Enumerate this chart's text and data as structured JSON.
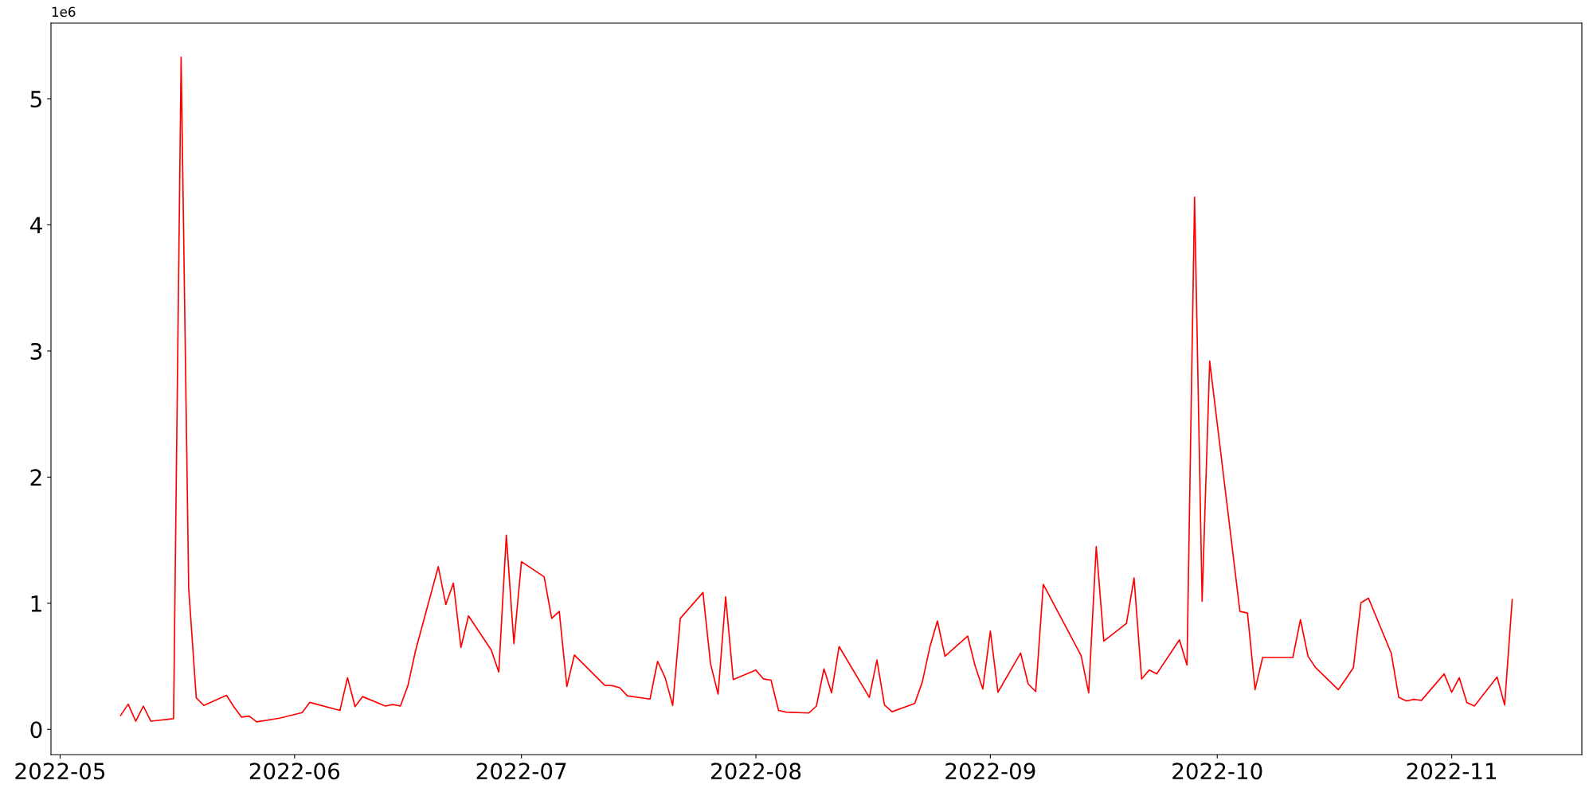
{
  "chart_data": {
    "type": "line",
    "x": [
      "2022-05-09",
      "2022-05-10",
      "2022-05-11",
      "2022-05-12",
      "2022-05-13",
      "2022-05-16",
      "2022-05-17",
      "2022-05-18",
      "2022-05-19",
      "2022-05-20",
      "2022-05-23",
      "2022-05-24",
      "2022-05-25",
      "2022-05-26",
      "2022-05-27",
      "2022-05-30",
      "2022-06-02",
      "2022-06-03",
      "2022-06-07",
      "2022-06-08",
      "2022-06-09",
      "2022-06-10",
      "2022-06-13",
      "2022-06-14",
      "2022-06-15",
      "2022-06-16",
      "2022-06-17",
      "2022-06-20",
      "2022-06-21",
      "2022-06-22",
      "2022-06-23",
      "2022-06-24",
      "2022-06-27",
      "2022-06-28",
      "2022-06-29",
      "2022-06-30",
      "2022-07-01",
      "2022-07-04",
      "2022-07-05",
      "2022-07-06",
      "2022-07-07",
      "2022-07-08",
      "2022-07-11",
      "2022-07-12",
      "2022-07-13",
      "2022-07-14",
      "2022-07-15",
      "2022-07-18",
      "2022-07-19",
      "2022-07-20",
      "2022-07-21",
      "2022-07-22",
      "2022-07-25",
      "2022-07-26",
      "2022-07-27",
      "2022-07-28",
      "2022-07-29",
      "2022-08-01",
      "2022-08-02",
      "2022-08-03",
      "2022-08-04",
      "2022-08-05",
      "2022-08-08",
      "2022-08-09",
      "2022-08-10",
      "2022-08-11",
      "2022-08-12",
      "2022-08-16",
      "2022-08-17",
      "2022-08-18",
      "2022-08-19",
      "2022-08-22",
      "2022-08-23",
      "2022-08-24",
      "2022-08-25",
      "2022-08-26",
      "2022-08-29",
      "2022-08-30",
      "2022-08-31",
      "2022-09-01",
      "2022-09-02",
      "2022-09-05",
      "2022-09-06",
      "2022-09-07",
      "2022-09-08",
      "2022-09-13",
      "2022-09-14",
      "2022-09-15",
      "2022-09-16",
      "2022-09-19",
      "2022-09-20",
      "2022-09-21",
      "2022-09-22",
      "2022-09-23",
      "2022-09-26",
      "2022-09-27",
      "2022-09-28",
      "2022-09-29",
      "2022-09-30",
      "2022-10-04",
      "2022-10-05",
      "2022-10-06",
      "2022-10-07",
      "2022-10-11",
      "2022-10-12",
      "2022-10-13",
      "2022-10-14",
      "2022-10-17",
      "2022-10-18",
      "2022-10-19",
      "2022-10-20",
      "2022-10-21",
      "2022-10-24",
      "2022-10-25",
      "2022-10-26",
      "2022-10-27",
      "2022-10-28",
      "2022-10-31",
      "2022-11-01",
      "2022-11-02",
      "2022-11-03",
      "2022-11-04",
      "2022-11-07",
      "2022-11-08",
      "2022-11-09"
    ],
    "series": [
      {
        "color": "#ff0000",
        "values": [
          0.11,
          0.2,
          0.065,
          0.185,
          0.065,
          0.085,
          5.33,
          1.12,
          0.25,
          0.19,
          0.27,
          0.177,
          0.097,
          0.105,
          0.06,
          0.089,
          0.133,
          0.214,
          0.15,
          0.41,
          0.18,
          0.26,
          0.185,
          0.197,
          0.185,
          0.35,
          0.625,
          1.29,
          0.99,
          1.16,
          0.65,
          0.9,
          0.63,
          0.455,
          1.54,
          0.68,
          1.33,
          1.21,
          0.88,
          0.935,
          0.34,
          0.59,
          0.41,
          0.35,
          0.347,
          0.33,
          0.266,
          0.24,
          0.54,
          0.41,
          0.19,
          0.88,
          1.085,
          0.52,
          0.28,
          1.05,
          0.395,
          0.47,
          0.4,
          0.39,
          0.15,
          0.137,
          0.13,
          0.185,
          0.48,
          0.29,
          0.657,
          0.254,
          0.55,
          0.194,
          0.14,
          0.205,
          0.375,
          0.653,
          0.86,
          0.58,
          0.74,
          0.5,
          0.32,
          0.78,
          0.294,
          0.605,
          0.36,
          0.3,
          1.15,
          0.585,
          0.29,
          1.45,
          0.7,
          0.84,
          1.2,
          0.4,
          0.47,
          0.44,
          0.71,
          0.51,
          4.22,
          1.015,
          2.92,
          0.935,
          0.923,
          0.315,
          0.57,
          0.57,
          0.87,
          0.58,
          0.49,
          0.315,
          0.4,
          0.49,
          1.004,
          1.04,
          0.605,
          0.254,
          0.226,
          0.238,
          0.23,
          0.44,
          0.294,
          0.41,
          0.214,
          0.185,
          0.415,
          0.194,
          1.03
        ]
      }
    ],
    "xlim": [
      "2022-04-29T19:00",
      "2022-11-18T05:00"
    ],
    "xticks": [
      {
        "value": "2022-05-01",
        "label": "2022-05"
      },
      {
        "value": "2022-06-01",
        "label": "2022-06"
      },
      {
        "value": "2022-07-01",
        "label": "2022-07"
      },
      {
        "value": "2022-08-01",
        "label": "2022-08"
      },
      {
        "value": "2022-09-01",
        "label": "2022-09"
      },
      {
        "value": "2022-10-01",
        "label": "2022-10"
      },
      {
        "value": "2022-11-01",
        "label": "2022-11"
      }
    ],
    "ylim": [
      -0.2,
      5.6
    ],
    "yticks": [
      0,
      1,
      2,
      3,
      4,
      5
    ],
    "annotations": [
      "1e6"
    ],
    "grid": false,
    "marker": "none",
    "line_style": "solid"
  }
}
